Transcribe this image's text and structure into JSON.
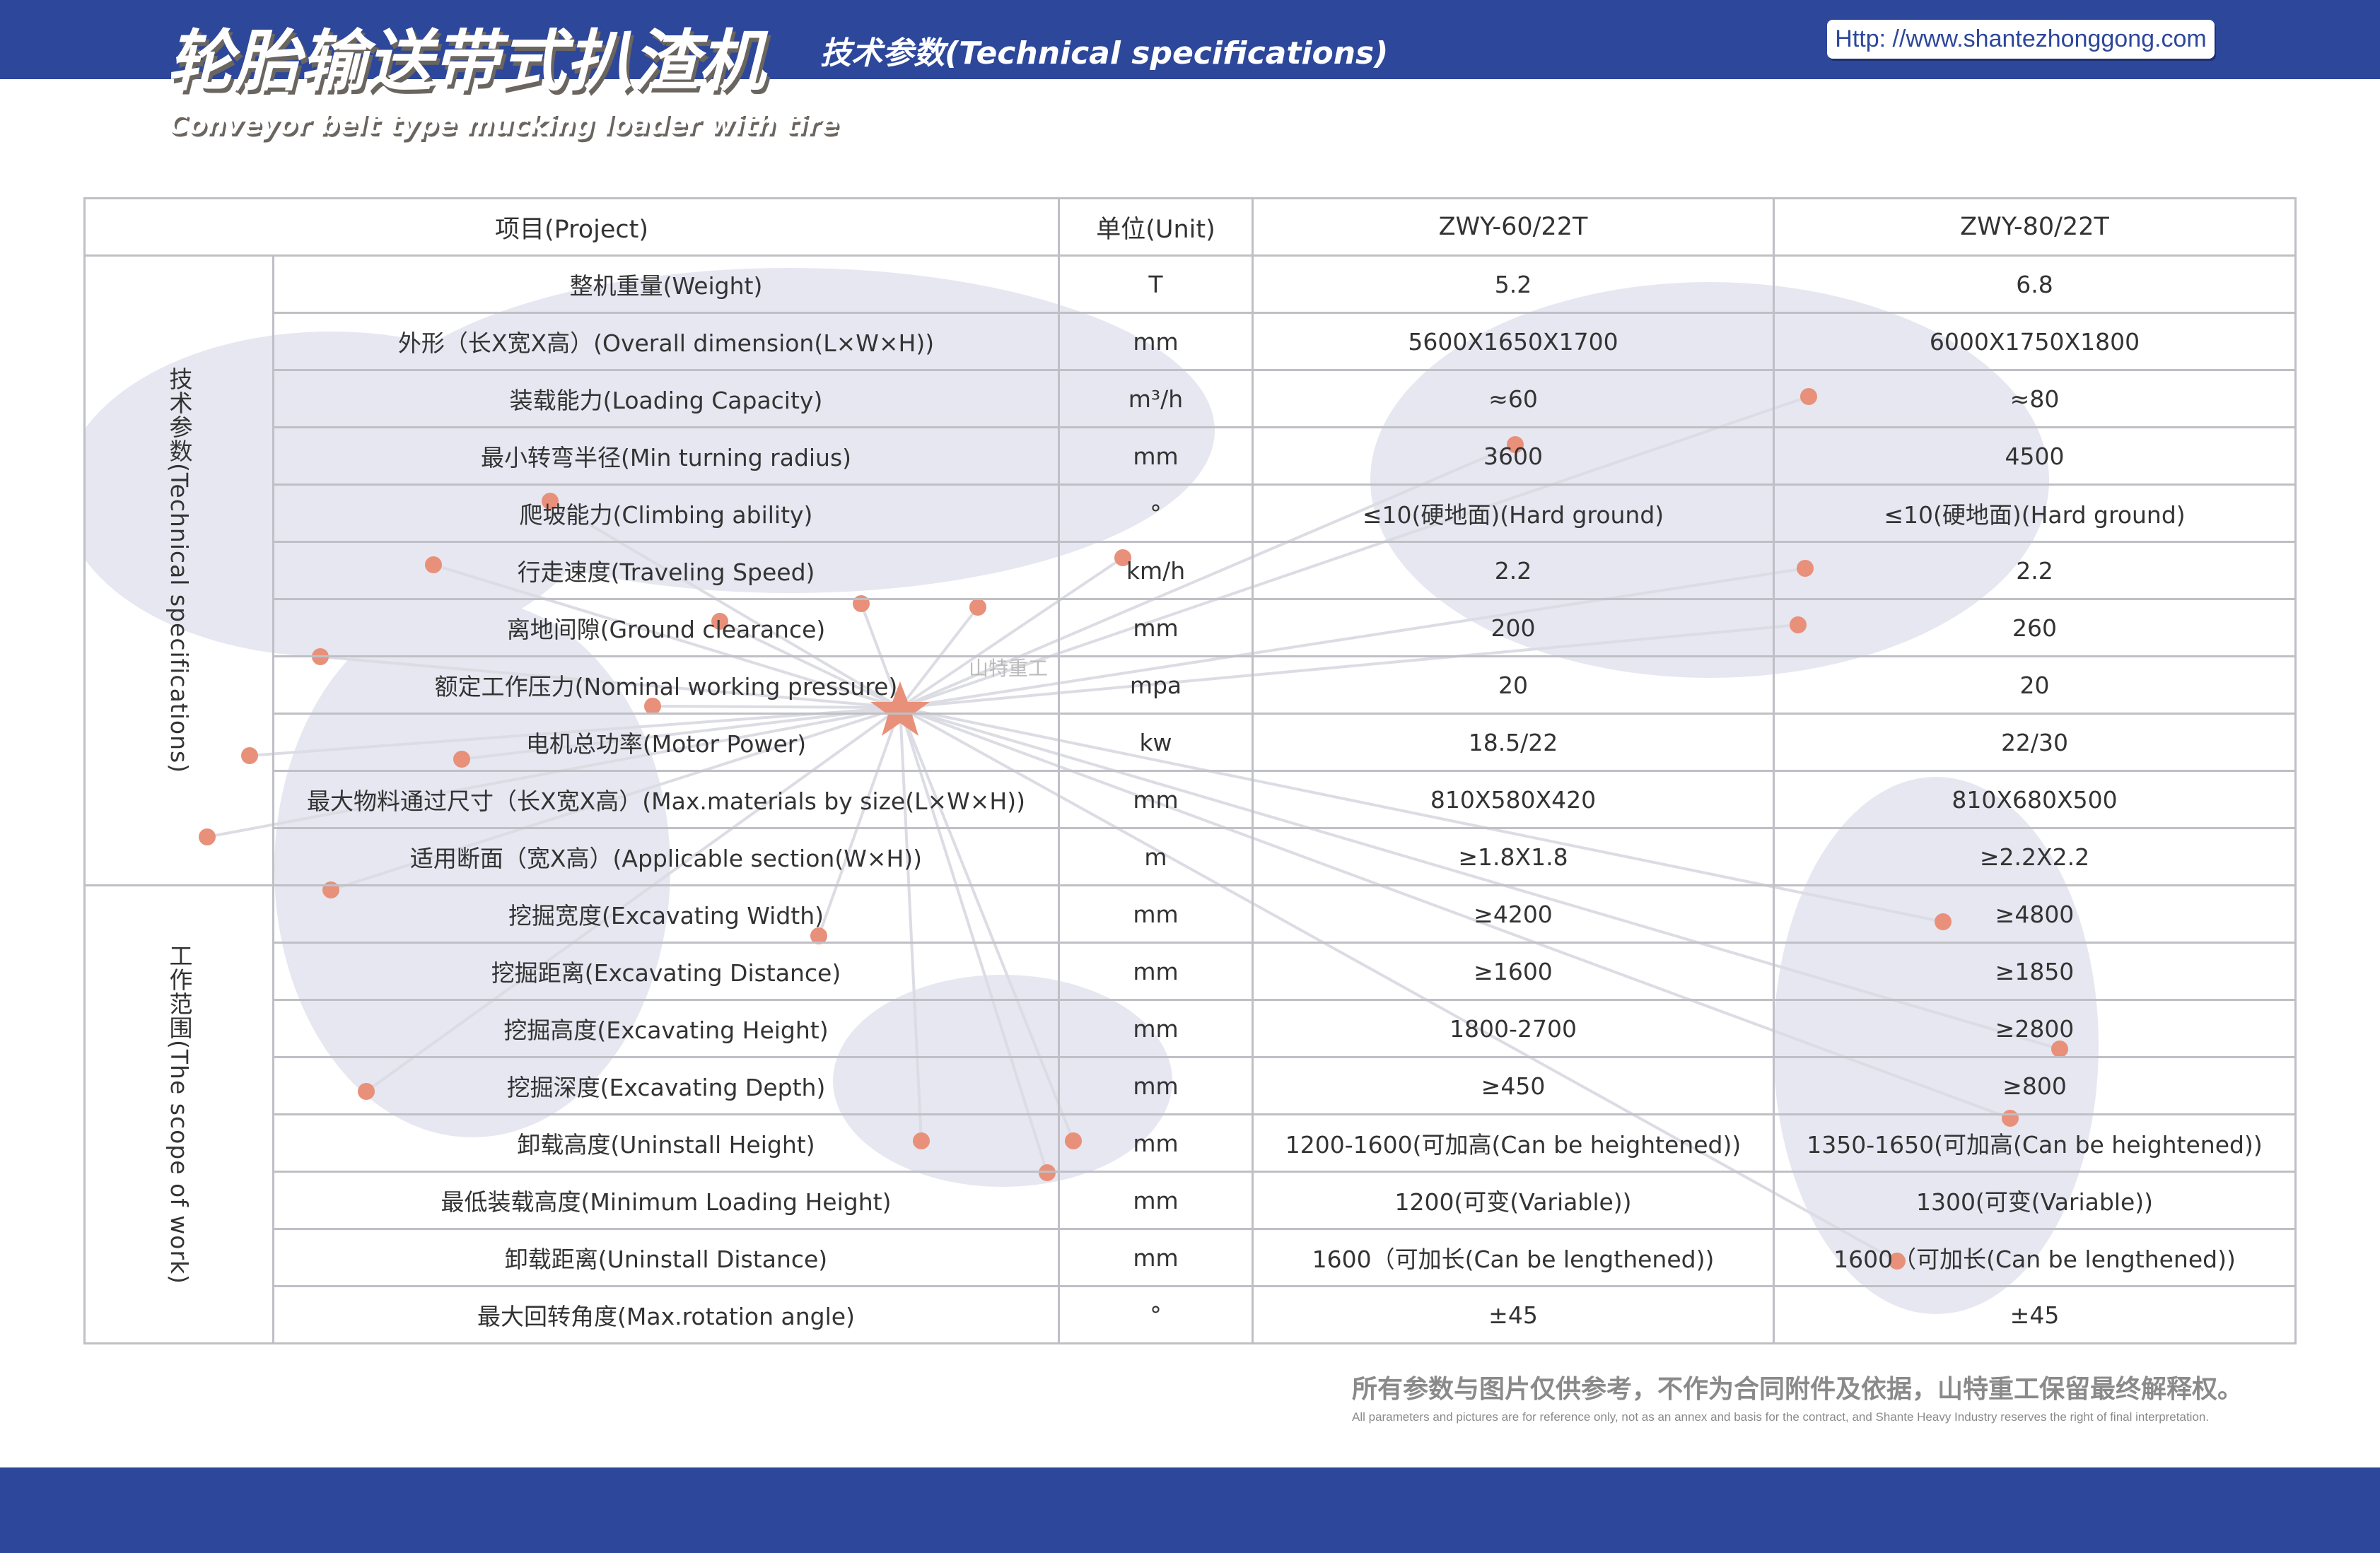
{
  "header": {
    "title_cn": "轮胎输送带式扒渣机",
    "title_en": "Conveyor belt type mucking loader with tire",
    "subtitle": "技术参数(Technical specifications)",
    "url": "Http: //www.shantezhonggong.com"
  },
  "colors": {
    "brand_blue": "#2d479b",
    "accent_dot": "#e8907a",
    "map": "#e6e7f1"
  },
  "map_label": "山特重工",
  "table": {
    "headers": [
      "项目(Project)",
      "单位(Unit)",
      "ZWY-60/22T",
      "ZWY-80/22T"
    ],
    "groups": [
      {
        "label": "技术参数(Technical specifications)",
        "rows": [
          [
            "整机重量(Weight)",
            "T",
            "5.2",
            "6.8"
          ],
          [
            "外形（长X宽X高）(Overall dimension(L×W×H))",
            "mm",
            "5600X1650X1700",
            "6000X1750X1800"
          ],
          [
            "装载能力(Loading Capacity)",
            "m³/h",
            "≈60",
            "≈80"
          ],
          [
            "最小转弯半径(Min turning radius)",
            "mm",
            "3600",
            "4500"
          ],
          [
            "爬坡能力(Climbing ability)",
            "°",
            "≤10(硬地面)(Hard ground)",
            "≤10(硬地面)(Hard ground)"
          ],
          [
            "行走速度(Traveling Speed)",
            "km/h",
            "2.2",
            "2.2"
          ],
          [
            "离地间隙(Ground clearance)",
            "mm",
            "200",
            "260"
          ],
          [
            "额定工作压力(Nominal working pressure)",
            "mpa",
            "20",
            "20"
          ],
          [
            "电机总功率(Motor Power)",
            "kw",
            "18.5/22",
            "22/30"
          ],
          [
            "最大物料通过尺寸（长X宽X高）(Max.materials by size(L×W×H))",
            "mm",
            "810X580X420",
            "810X680X500"
          ],
          [
            "适用断面（宽X高）(Applicable section(W×H))",
            "m",
            "≥1.8X1.8",
            "≥2.2X2.2"
          ]
        ]
      },
      {
        "label": "工作范围(The scope of work)",
        "rows": [
          [
            "挖掘宽度(Excavating Width)",
            "mm",
            "≥4200",
            "≥4800"
          ],
          [
            "挖掘距离(Excavating Distance)",
            "mm",
            "≥1600",
            "≥1850"
          ],
          [
            "挖掘高度(Excavating Height)",
            "mm",
            "1800-2700",
            "≥2800"
          ],
          [
            "挖掘深度(Excavating Depth)",
            "mm",
            "≥450",
            "≥800"
          ],
          [
            "卸载高度(Uninstall Height)",
            "mm",
            "1200-1600(可加高(Can be heightened))",
            "1350-1650(可加高(Can be heightened))"
          ],
          [
            "最低装载高度(Minimum Loading Height)",
            "mm",
            "1200(可变(Variable))",
            "1300(可变(Variable))"
          ],
          [
            "卸载距离(Uninstall Distance)",
            "mm",
            "1600（可加长(Can be lengthened))",
            "1600（可加长(Can be lengthened))"
          ],
          [
            "最大回转角度(Max.rotation angle)",
            "°",
            "±45",
            "±45"
          ]
        ]
      }
    ]
  },
  "footer": {
    "note_cn": "所有参数与图片仅供参考，不作为合同附件及依据，山特重工保留最终解释权。",
    "note_en": "All parameters and pictures are for reference only, not as an annex and basis for the contract, and Shante Heavy Industry reserves the right of final interpretation."
  }
}
